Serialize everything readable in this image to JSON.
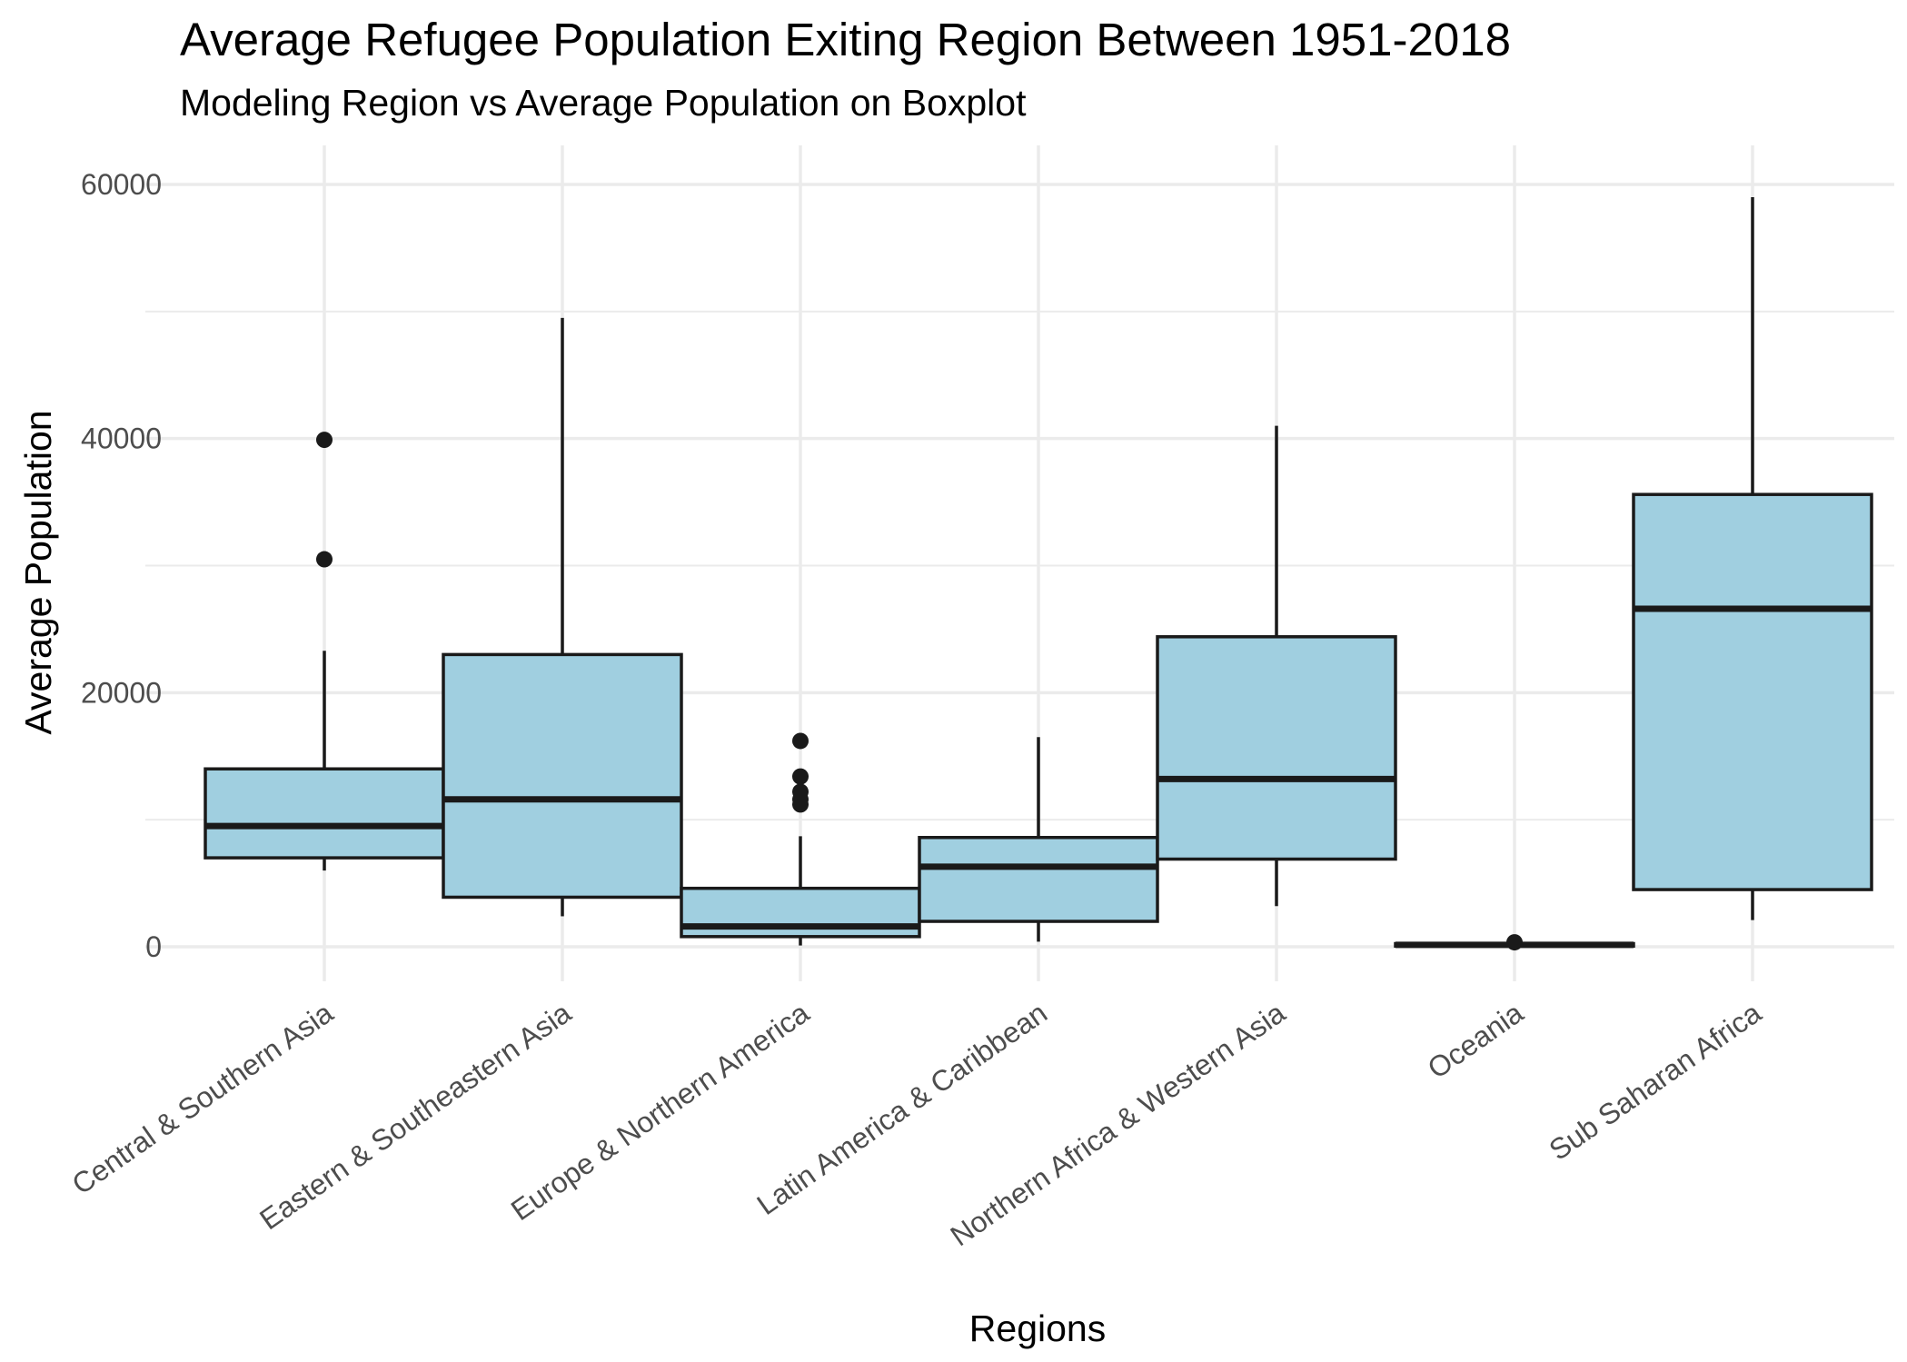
{
  "chart_data": {
    "type": "boxplot",
    "title": "Average Refugee Population Exiting Region Between 1951-2018",
    "subtitle": "Modeling Region vs Average Population on Boxplot",
    "xlabel": "Regions",
    "ylabel": "Average Population",
    "ylim": [
      -3000,
      63000
    ],
    "yticks": [
      0,
      20000,
      40000,
      60000
    ],
    "ytick_labels": [
      "0",
      "20000",
      "40000",
      "60000"
    ],
    "grid": true,
    "box_fill": "#a0cfe0",
    "line_color": "#1a1a1a",
    "grid_color": "#ebebeb",
    "categories": [
      "Central & Southern Asia",
      "Eastern & Southeastern Asia",
      "Europe & Northern America",
      "Latin America & Caribbean",
      "Northern Africa & Western Asia",
      "Oceania",
      "Sub Saharan Africa"
    ],
    "boxes": [
      {
        "category": "Central & Southern Asia",
        "whisker_low": 6000,
        "q1": 7000,
        "median": 9500,
        "q3": 14000,
        "whisker_high": 23300,
        "outliers": [
          30500,
          39900
        ]
      },
      {
        "category": "Eastern & Southeastern Asia",
        "whisker_low": 2400,
        "q1": 3900,
        "median": 11600,
        "q3": 23000,
        "whisker_high": 49500,
        "outliers": []
      },
      {
        "category": "Europe & Northern America",
        "whisker_low": 100,
        "q1": 800,
        "median": 1600,
        "q3": 4600,
        "whisker_high": 8700,
        "outliers": [
          11200,
          11600,
          12200,
          13400,
          16200
        ]
      },
      {
        "category": "Latin America & Caribbean",
        "whisker_low": 400,
        "q1": 2000,
        "median": 6300,
        "q3": 8600,
        "whisker_high": 16500,
        "outliers": []
      },
      {
        "category": "Northern Africa & Western Asia",
        "whisker_low": 3200,
        "q1": 6900,
        "median": 13200,
        "q3": 24400,
        "whisker_high": 41000,
        "outliers": []
      },
      {
        "category": "Oceania",
        "whisker_low": 0,
        "q1": 50,
        "median": 150,
        "q3": 250,
        "whisker_high": 300,
        "outliers": [
          350
        ]
      },
      {
        "category": "Sub Saharan Africa",
        "whisker_low": 2100,
        "q1": 4500,
        "median": 26600,
        "q3": 35600,
        "whisker_high": 59000,
        "outliers": []
      }
    ]
  }
}
